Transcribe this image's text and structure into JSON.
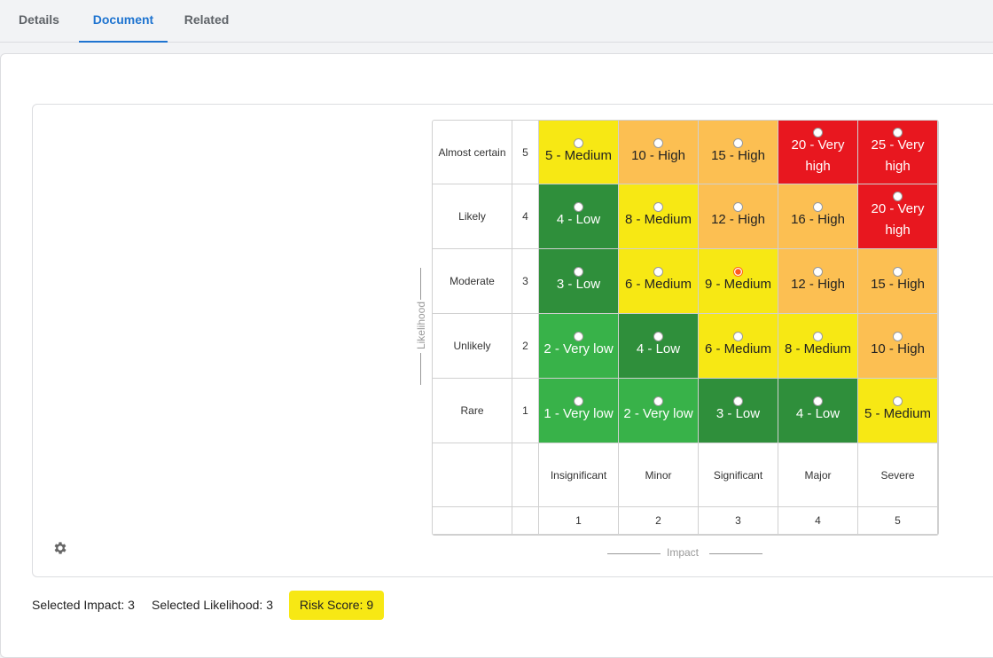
{
  "tabs": [
    {
      "label": "Details",
      "active": false
    },
    {
      "label": "Document",
      "active": true
    },
    {
      "label": "Related",
      "active": false
    }
  ],
  "colors": {
    "very_low": "#38b249",
    "low": "#2f8f3b",
    "medium": "#f7e814",
    "high": "#fcbf52",
    "very_high": "#e8171f",
    "accent": "#1f74d0"
  },
  "matrix": {
    "likelihood_axis_label": "Likelihood",
    "impact_axis_label": "Impact",
    "rows": [
      {
        "label": "Almost certain",
        "value": "5",
        "cells": [
          {
            "text": "5 - Medium",
            "level": "medium"
          },
          {
            "text": "10 - High",
            "level": "high"
          },
          {
            "text": "15 - High",
            "level": "high"
          },
          {
            "text": "20 - Very high",
            "level": "very_high"
          },
          {
            "text": "25 - Very high",
            "level": "very_high"
          }
        ]
      },
      {
        "label": "Likely",
        "value": "4",
        "cells": [
          {
            "text": "4 - Low",
            "level": "low"
          },
          {
            "text": "8 - Medium",
            "level": "medium"
          },
          {
            "text": "12 - High",
            "level": "high"
          },
          {
            "text": "16 - High",
            "level": "high"
          },
          {
            "text": "20 - Very high",
            "level": "very_high"
          }
        ]
      },
      {
        "label": "Moderate",
        "value": "3",
        "cells": [
          {
            "text": "3 - Low",
            "level": "low"
          },
          {
            "text": "6 - Medium",
            "level": "medium"
          },
          {
            "text": "9 - Medium",
            "level": "medium",
            "selected": true
          },
          {
            "text": "12 - High",
            "level": "high"
          },
          {
            "text": "15 - High",
            "level": "high"
          }
        ]
      },
      {
        "label": "Unlikely",
        "value": "2",
        "cells": [
          {
            "text": "2 - Very low",
            "level": "very_low"
          },
          {
            "text": "4 - Low",
            "level": "low"
          },
          {
            "text": "6 - Medium",
            "level": "medium"
          },
          {
            "text": "8 - Medium",
            "level": "medium"
          },
          {
            "text": "10 - High",
            "level": "high"
          }
        ]
      },
      {
        "label": "Rare",
        "value": "1",
        "cells": [
          {
            "text": "1 - Very low",
            "level": "very_low"
          },
          {
            "text": "2 - Very low",
            "level": "very_low"
          },
          {
            "text": "3 - Low",
            "level": "low"
          },
          {
            "text": "4 - Low",
            "level": "low"
          },
          {
            "text": "5 - Medium",
            "level": "medium"
          }
        ]
      }
    ],
    "impact_columns": [
      {
        "label": "Insignificant",
        "value": "1"
      },
      {
        "label": "Minor",
        "value": "2"
      },
      {
        "label": "Significant",
        "value": "3"
      },
      {
        "label": "Major",
        "value": "4"
      },
      {
        "label": "Severe",
        "value": "5"
      }
    ]
  },
  "settings_icon": "gear-icon",
  "footer": {
    "selected_impact": "Selected Impact: 3",
    "selected_likelihood": "Selected Likelihood: 3",
    "risk_score": "Risk Score: 9"
  }
}
